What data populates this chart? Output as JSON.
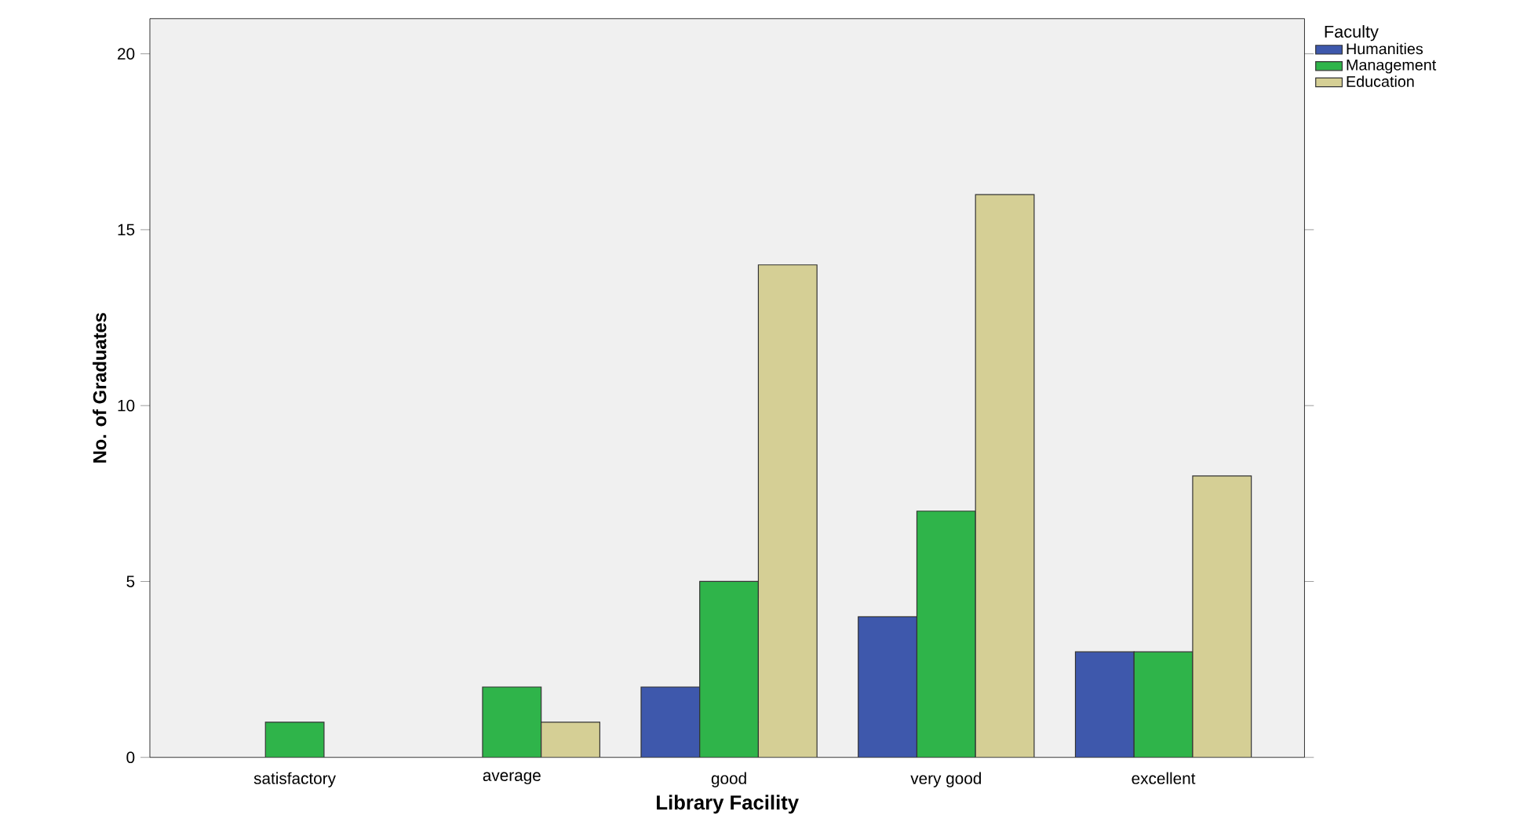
{
  "chart_data": {
    "type": "bar",
    "xlabel": "Library Facility",
    "ylabel": "No. of Graduates",
    "legend_title": "Faculty",
    "legend": "right",
    "categories": [
      "satisfactory",
      "average",
      "good",
      "very good",
      "excellent"
    ],
    "series": [
      {
        "name": "Humanities",
        "color": "#3e58ac",
        "values": [
          null,
          null,
          2,
          4,
          3
        ]
      },
      {
        "name": "Management",
        "color": "#2fb44a",
        "values": [
          1,
          2,
          5,
          7,
          3
        ]
      },
      {
        "name": "Education",
        "color": "#d5cf95",
        "values": [
          null,
          1,
          14,
          16,
          8
        ]
      }
    ],
    "ylim": [
      0,
      21
    ],
    "yticks": [
      0,
      5,
      10,
      15,
      20
    ]
  }
}
